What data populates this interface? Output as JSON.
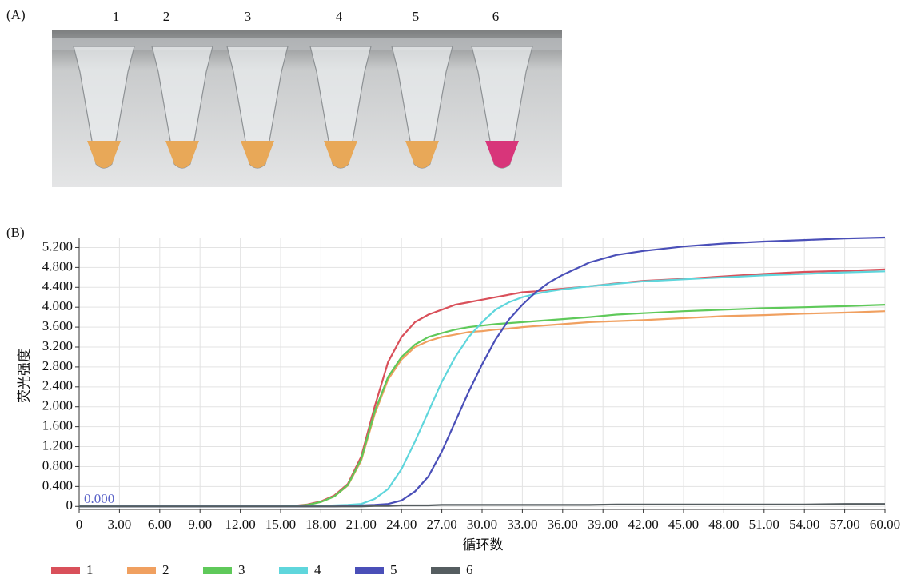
{
  "panel_a": {
    "label": "(A)",
    "tube_labels": [
      "1",
      "2",
      "3",
      "4",
      "5",
      "6"
    ]
  },
  "chart_data": {
    "type": "line",
    "panel_label": "(B)",
    "x_label": "循环数",
    "y_label": "荧光强度",
    "annotation": "0.000",
    "x": [
      0,
      3,
      6,
      9,
      12,
      15,
      16,
      17,
      18,
      19,
      20,
      21,
      22,
      23,
      24,
      25,
      26,
      27,
      28,
      29,
      30,
      31,
      32,
      33,
      34,
      35,
      36,
      38,
      40,
      42,
      45,
      48,
      51,
      54,
      57,
      60
    ],
    "series": [
      {
        "name": "1",
        "color": "#d9505a",
        "values": [
          0,
          0,
          0,
          0,
          0,
          0,
          0.01,
          0.04,
          0.1,
          0.22,
          0.45,
          1.0,
          2.0,
          2.9,
          3.4,
          3.7,
          3.85,
          3.95,
          4.05,
          4.1,
          4.15,
          4.2,
          4.25,
          4.3,
          4.32,
          4.35,
          4.37,
          4.42,
          4.48,
          4.53,
          4.57,
          4.62,
          4.67,
          4.71,
          4.73,
          4.76
        ]
      },
      {
        "name": "2",
        "color": "#f0a060",
        "values": [
          0,
          0,
          0,
          0,
          0,
          0,
          0.01,
          0.03,
          0.09,
          0.2,
          0.42,
          0.92,
          1.85,
          2.55,
          2.95,
          3.2,
          3.32,
          3.4,
          3.45,
          3.5,
          3.52,
          3.55,
          3.57,
          3.6,
          3.62,
          3.64,
          3.66,
          3.7,
          3.72,
          3.74,
          3.78,
          3.82,
          3.84,
          3.87,
          3.89,
          3.92
        ]
      },
      {
        "name": "3",
        "color": "#5fc95a",
        "values": [
          0,
          0,
          0,
          0,
          0,
          0,
          0.01,
          0.03,
          0.09,
          0.2,
          0.43,
          0.95,
          1.9,
          2.6,
          3.0,
          3.25,
          3.4,
          3.48,
          3.55,
          3.6,
          3.63,
          3.66,
          3.68,
          3.7,
          3.72,
          3.74,
          3.76,
          3.8,
          3.85,
          3.88,
          3.92,
          3.95,
          3.98,
          4.0,
          4.02,
          4.05
        ]
      },
      {
        "name": "4",
        "color": "#5fd6dc",
        "values": [
          0,
          0,
          0,
          0,
          0,
          0,
          0,
          0,
          0.01,
          0.02,
          0.03,
          0.05,
          0.15,
          0.35,
          0.75,
          1.3,
          1.9,
          2.5,
          3.0,
          3.4,
          3.7,
          3.95,
          4.1,
          4.2,
          4.27,
          4.32,
          4.36,
          4.42,
          4.47,
          4.52,
          4.56,
          4.6,
          4.64,
          4.67,
          4.7,
          4.72
        ]
      },
      {
        "name": "5",
        "color": "#4a4fb8",
        "values": [
          0,
          0,
          0,
          0,
          0,
          0,
          0,
          0,
          0,
          0,
          0.01,
          0.02,
          0.03,
          0.05,
          0.12,
          0.3,
          0.6,
          1.1,
          1.7,
          2.3,
          2.85,
          3.35,
          3.75,
          4.05,
          4.3,
          4.5,
          4.65,
          4.9,
          5.05,
          5.13,
          5.22,
          5.28,
          5.32,
          5.35,
          5.38,
          5.4
        ]
      },
      {
        "name": "6",
        "color": "#555d60",
        "values": [
          0,
          0,
          0,
          0,
          0,
          0,
          0,
          0,
          0,
          0,
          0,
          0,
          0.01,
          0.01,
          0.02,
          0.02,
          0.02,
          0.03,
          0.03,
          0.03,
          0.03,
          0.03,
          0.03,
          0.03,
          0.03,
          0.03,
          0.03,
          0.03,
          0.04,
          0.04,
          0.04,
          0.04,
          0.04,
          0.04,
          0.05,
          0.05
        ]
      }
    ],
    "xlim": [
      0,
      60
    ],
    "xticks": [
      0,
      {
        "value": 3,
        "label": "3.00"
      },
      {
        "value": 6,
        "label": "6.00"
      },
      {
        "value": 9,
        "label": "9.00"
      },
      {
        "value": 12,
        "label": "12.00"
      },
      {
        "value": 15,
        "label": "15.00"
      },
      {
        "value": 18,
        "label": "18.00"
      },
      {
        "value": 21,
        "label": "21.00"
      },
      {
        "value": 24,
        "label": "24.00"
      },
      {
        "value": 27,
        "label": "27.00"
      },
      {
        "value": 30,
        "label": "30.00"
      },
      {
        "value": 33,
        "label": "33.00"
      },
      {
        "value": 36,
        "label": "36.00"
      },
      {
        "value": 39,
        "label": "39.00"
      },
      {
        "value": 42,
        "label": "42.00"
      },
      {
        "value": 45,
        "label": "45.00"
      },
      {
        "value": 48,
        "label": "48.00"
      },
      {
        "value": 51,
        "label": "51.00"
      },
      {
        "value": 54,
        "label": "54.00"
      },
      {
        "value": 57,
        "label": "57.00"
      },
      {
        "value": 60,
        "label": "60.00"
      }
    ],
    "ylim": [
      -0.06,
      5.4
    ],
    "yticks": [
      0,
      {
        "value": 0.4,
        "label": "0.400"
      },
      {
        "value": 0.8,
        "label": "0.800"
      },
      {
        "value": 1.2,
        "label": "1.200"
      },
      {
        "value": 1.6,
        "label": "1.600"
      },
      {
        "value": 2.0,
        "label": "2.000"
      },
      {
        "value": 2.4,
        "label": "2.400"
      },
      {
        "value": 2.8,
        "label": "2.800"
      },
      {
        "value": 3.2,
        "label": "3.200"
      },
      {
        "value": 3.6,
        "label": "3.600"
      },
      {
        "value": 4.0,
        "label": "4.000"
      },
      {
        "value": 4.4,
        "label": "4.400"
      },
      {
        "value": 4.8,
        "label": "4.800"
      },
      {
        "value": 5.2,
        "label": "5.200"
      }
    ],
    "grid": true
  }
}
